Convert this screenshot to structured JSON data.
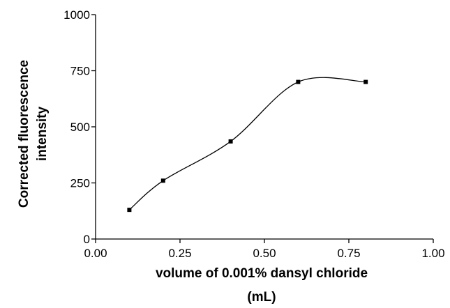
{
  "chart_data": {
    "type": "scatter",
    "title": "",
    "xlabel_lines": [
      "volume of 0.001% dansyl chloride",
      "(mL)"
    ],
    "ylabel_lines": [
      "Corrected fluorescence",
      "intensity"
    ],
    "xlim": [
      0,
      1.0
    ],
    "ylim": [
      0,
      1000
    ],
    "x_ticks": [
      0,
      0.25,
      0.5,
      0.75,
      1.0
    ],
    "x_tick_labels": [
      "0.00",
      "0.25",
      "0.50",
      "0.75",
      "1.00"
    ],
    "y_ticks": [
      0,
      250,
      500,
      750,
      1000
    ],
    "y_tick_labels": [
      "0",
      "250",
      "500",
      "750",
      "1000"
    ],
    "grid": false,
    "legend": "none",
    "series": [
      {
        "x": [
          0.1,
          0.2,
          0.4,
          0.6,
          0.8
        ],
        "y": [
          130,
          260,
          435,
          700,
          700
        ],
        "marker": "square",
        "line": "smooth"
      }
    ]
  }
}
